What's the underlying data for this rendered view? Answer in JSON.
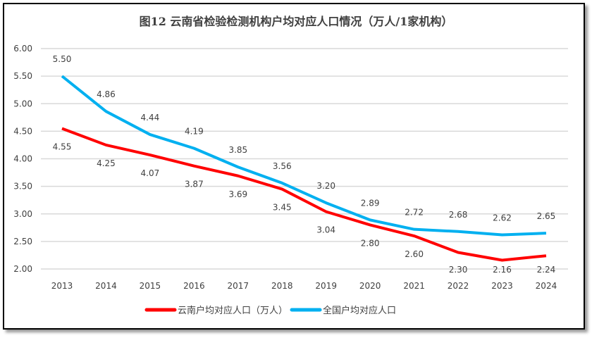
{
  "chart_data": {
    "type": "line",
    "title": "图12  云南省检验检测机构户均对应人口情况（万人/1家机构）",
    "categories": [
      "2013",
      "2014",
      "2015",
      "2016",
      "2017",
      "2018",
      "2019",
      "2020",
      "2021",
      "2022",
      "2023",
      "2024"
    ],
    "series": [
      {
        "name": "云南户均对应人口（万人）",
        "color": "#ff0000",
        "values": [
          4.55,
          4.25,
          4.07,
          3.87,
          3.69,
          3.45,
          3.04,
          2.8,
          2.6,
          2.3,
          2.16,
          2.24
        ]
      },
      {
        "name": "全国户均对应人口",
        "color": "#00b0f0",
        "values": [
          5.5,
          4.86,
          4.44,
          4.19,
          3.85,
          3.56,
          3.2,
          2.89,
          2.72,
          2.68,
          2.62,
          2.65
        ]
      }
    ],
    "ylim": [
      2.0,
      6.0
    ],
    "yticks": [
      "2.00",
      "2.50",
      "3.00",
      "3.50",
      "4.00",
      "4.50",
      "5.00",
      "5.50",
      "6.00"
    ],
    "grid": true,
    "legend": "bottom",
    "xlabel": "",
    "ylabel": ""
  }
}
